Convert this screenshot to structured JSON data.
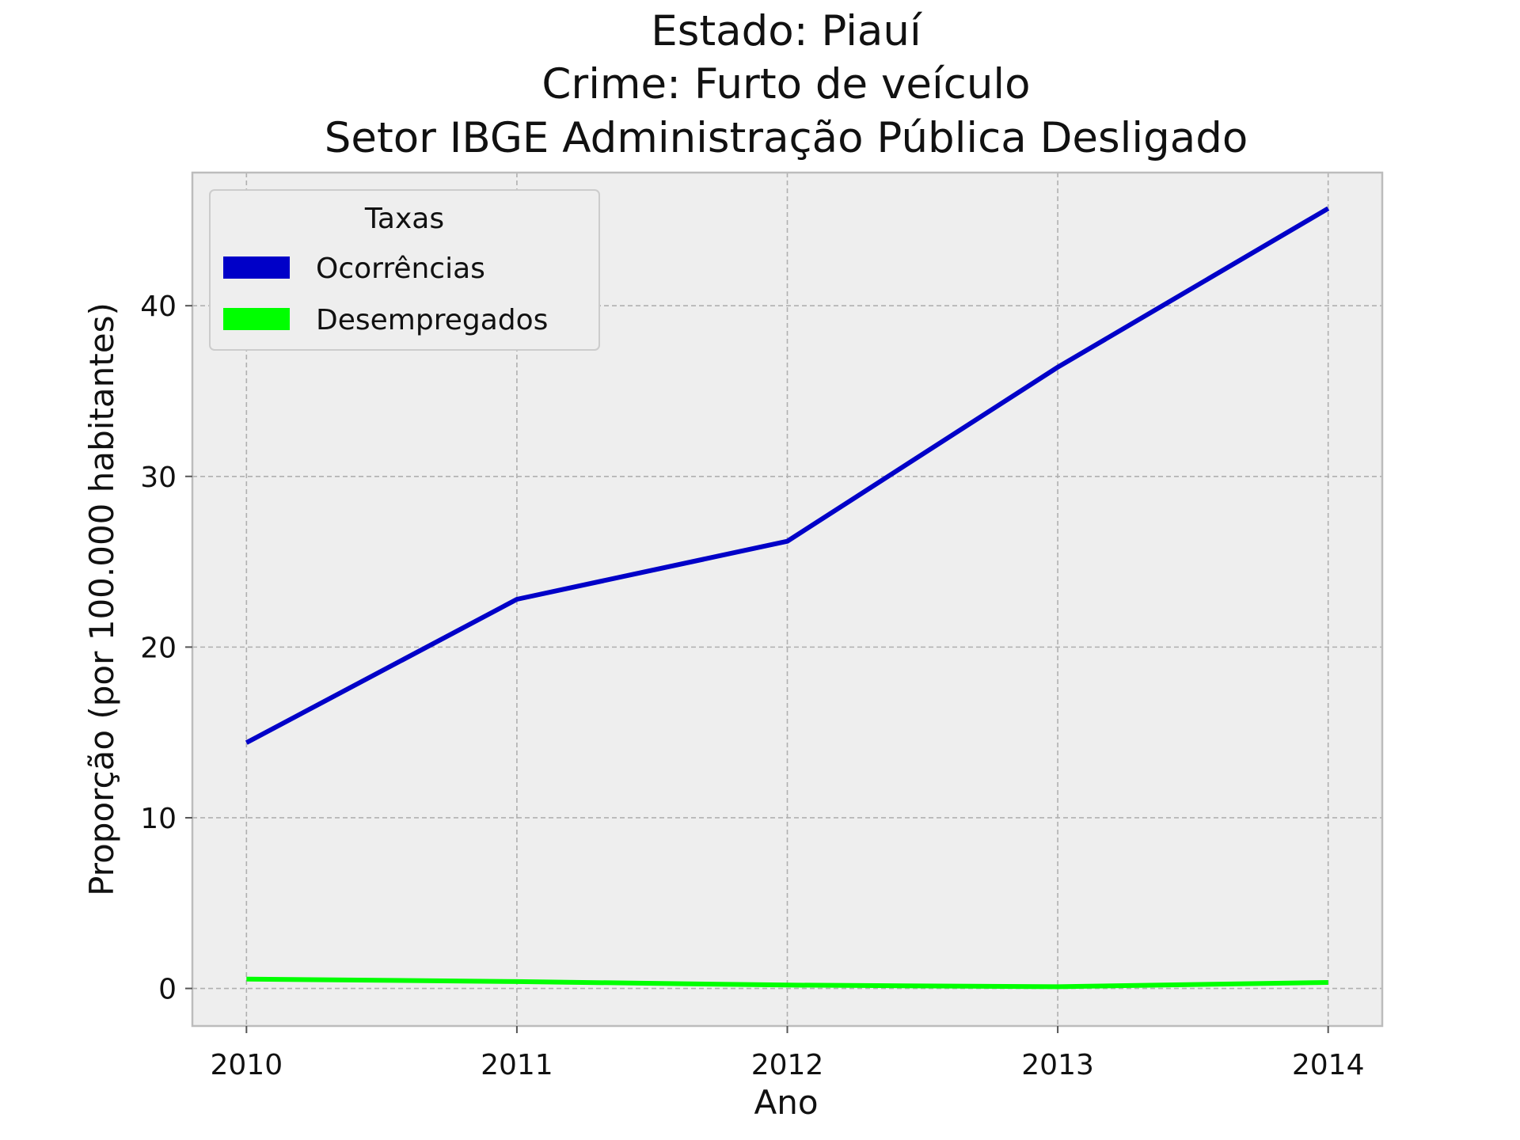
{
  "chart_data": {
    "type": "line",
    "title_lines": [
      "Estado: Piauí",
      "Crime: Furto de veículo",
      "Setor IBGE  Administração Pública   Desligado"
    ],
    "xlabel": "Ano",
    "ylabel": "Proporção (por 100.000 habitantes)",
    "x": [
      2010,
      2011,
      2012,
      2013,
      2014
    ],
    "xtick_labels": [
      "2010",
      "2011",
      "2012",
      "2013",
      "2014"
    ],
    "xlim": [
      2009.8,
      2014.2
    ],
    "ylim": [
      -2.2,
      47.8
    ],
    "yticks": [
      0,
      10,
      20,
      30,
      40
    ],
    "ytick_labels": [
      "0",
      "10",
      "20",
      "30",
      "40"
    ],
    "grid": true,
    "legend": {
      "title": "Taxas",
      "placement": "top-left"
    },
    "series": [
      {
        "name": "Ocorrências",
        "color": "#0000c8",
        "values": [
          14.4,
          22.8,
          26.2,
          36.4,
          45.7
        ]
      },
      {
        "name": "Desempregados",
        "color": "#00ff00",
        "values": [
          0.55,
          0.4,
          0.2,
          0.1,
          0.35
        ]
      }
    ]
  },
  "colors": {
    "plot_background": "#eeeeee",
    "grid": "#b0b0b0",
    "spine": "#bcbcbc"
  }
}
